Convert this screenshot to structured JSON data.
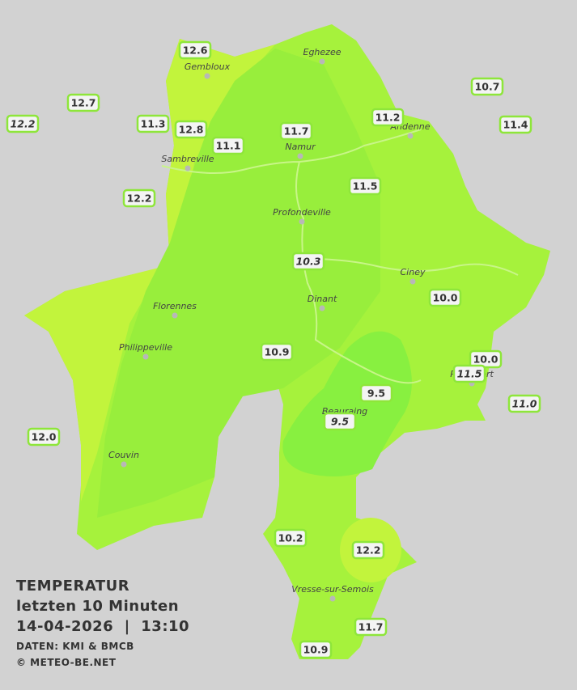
{
  "title": {
    "heading": "TEMPERATUR",
    "period": "letzten 10 Minuten",
    "timestamp": "14-04-2026  |  13:10",
    "source": "DATEN: KMI & BMCB",
    "copyright": "© METEO-BE.NET"
  },
  "cities": [
    "Eghezee",
    "Gembloux",
    "Andenne",
    "Namur",
    "Sambreville",
    "Profondeville",
    "Ciney",
    "Dinant",
    "Florennes",
    "Philippeville",
    "Beauraing",
    "Rochefort",
    "Couvin",
    "Vresse-sur-Semois"
  ],
  "stations": [
    {
      "temp": "12.6",
      "italic": false
    },
    {
      "temp": "12.7",
      "italic": false
    },
    {
      "temp": "12.2",
      "italic": true
    },
    {
      "temp": "11.3",
      "italic": false
    },
    {
      "temp": "12.8",
      "italic": false
    },
    {
      "temp": "11.1",
      "italic": false
    },
    {
      "temp": "11.7",
      "italic": false
    },
    {
      "temp": "11.2",
      "italic": false
    },
    {
      "temp": "10.7",
      "italic": false
    },
    {
      "temp": "11.4",
      "italic": false
    },
    {
      "temp": "12.2",
      "italic": false
    },
    {
      "temp": "11.5",
      "italic": false
    },
    {
      "temp": "10.3",
      "italic": true
    },
    {
      "temp": "10.0",
      "italic": false
    },
    {
      "temp": "10.9",
      "italic": false
    },
    {
      "temp": "10.0",
      "italic": false
    },
    {
      "temp": "11.5",
      "italic": true
    },
    {
      "temp": "9.5",
      "italic": false
    },
    {
      "temp": "9.5",
      "italic": true
    },
    {
      "temp": "11.0",
      "italic": true
    },
    {
      "temp": "12.0",
      "italic": false
    },
    {
      "temp": "10.2",
      "italic": false
    },
    {
      "temp": "12.2",
      "italic": false
    },
    {
      "temp": "11.7",
      "italic": false
    },
    {
      "temp": "10.9",
      "italic": false
    }
  ]
}
